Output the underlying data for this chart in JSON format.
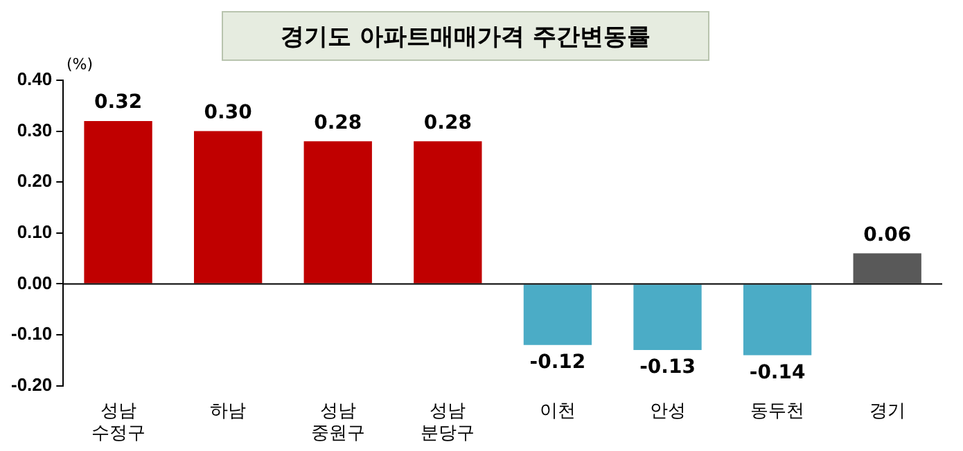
{
  "chart_data": {
    "type": "bar",
    "title": "경기도 아파트매매가격 주간변동률",
    "ylabel": "(%)",
    "categories": [
      "성남\n수정구",
      "하남",
      "성남\n중원구",
      "성남\n분당구",
      "이천",
      "안성",
      "동두천",
      "경기"
    ],
    "values": [
      0.32,
      0.3,
      0.28,
      0.28,
      -0.12,
      -0.13,
      -0.14,
      0.06
    ],
    "colors": [
      "#c00000",
      "#c00000",
      "#c00000",
      "#c00000",
      "#4bacc6",
      "#4bacc6",
      "#4bacc6",
      "#595959"
    ],
    "ylim": [
      -0.2,
      0.4
    ],
    "yticks": [
      {
        "value": -0.2,
        "label": "-0.20"
      },
      {
        "value": -0.1,
        "label": "-0.10"
      },
      {
        "value": 0,
        "label": "0.00"
      },
      {
        "value": 0.1,
        "label": "0.10"
      },
      {
        "value": 0.2,
        "label": "0.20"
      },
      {
        "value": 0.3,
        "label": "0.30"
      },
      {
        "value": 0.4,
        "label": "0.40"
      }
    ],
    "value_labels": [
      "0.32",
      "0.30",
      "0.28",
      "0.28",
      "-0.12",
      "-0.13",
      "-0.14",
      "0.06"
    ],
    "ref_lines": [
      {
        "axis": "y",
        "value": 0,
        "color": "#000000"
      }
    ],
    "legend": false
  }
}
